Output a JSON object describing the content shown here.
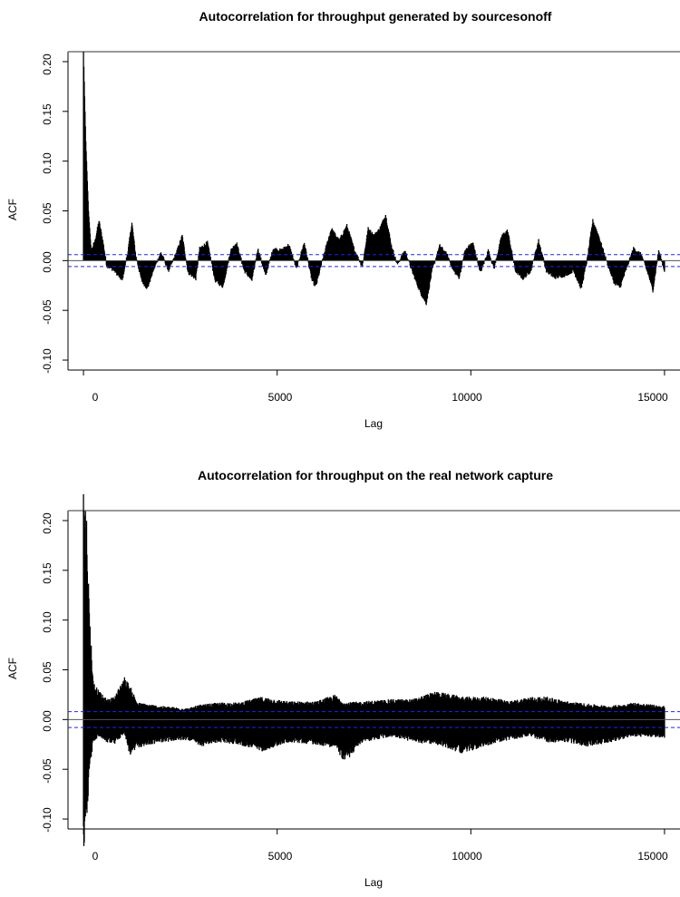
{
  "chart_data": [
    {
      "type": "bar",
      "title": "Autocorrelation for throughput generated by sourcesonoff",
      "xlabel": "Lag",
      "ylabel": "ACF",
      "xlim": [
        0,
        15000
      ],
      "ylim": [
        -0.11,
        0.21
      ],
      "xticks": [
        "0",
        "5000",
        "10000",
        "15000"
      ],
      "yticks": [
        "-0.10",
        "-0.05",
        "0.00",
        "0.05",
        "0.10",
        "0.15",
        "0.20"
      ],
      "confidence_band": 0.006,
      "max_lag": 15000,
      "grid": false,
      "envelope": [
        {
          "lag": 0,
          "acf": 0.21
        },
        {
          "lag": 60,
          "acf": 0.12
        },
        {
          "lag": 130,
          "acf": 0.05
        },
        {
          "lag": 200,
          "acf": 0.01
        },
        {
          "lag": 300,
          "acf": 0.02
        },
        {
          "lag": 400,
          "acf": 0.04
        },
        {
          "lag": 500,
          "acf": 0.02
        },
        {
          "lag": 600,
          "acf": -0.005
        },
        {
          "lag": 800,
          "acf": -0.01
        },
        {
          "lag": 1000,
          "acf": -0.02
        },
        {
          "lag": 1150,
          "acf": 0.01
        },
        {
          "lag": 1250,
          "acf": 0.038
        },
        {
          "lag": 1350,
          "acf": 0.005
        },
        {
          "lag": 1500,
          "acf": -0.02
        },
        {
          "lag": 1650,
          "acf": -0.028
        },
        {
          "lag": 1800,
          "acf": -0.01
        },
        {
          "lag": 2000,
          "acf": 0.008
        },
        {
          "lag": 2200,
          "acf": -0.01
        },
        {
          "lag": 2400,
          "acf": 0.008
        },
        {
          "lag": 2550,
          "acf": 0.025
        },
        {
          "lag": 2700,
          "acf": -0.012
        },
        {
          "lag": 2900,
          "acf": -0.018
        },
        {
          "lag": 3000,
          "acf": 0.012
        },
        {
          "lag": 3200,
          "acf": 0.018
        },
        {
          "lag": 3400,
          "acf": -0.02
        },
        {
          "lag": 3600,
          "acf": -0.026
        },
        {
          "lag": 3800,
          "acf": 0.01
        },
        {
          "lag": 3950,
          "acf": 0.018
        },
        {
          "lag": 4150,
          "acf": -0.01
        },
        {
          "lag": 4350,
          "acf": -0.02
        },
        {
          "lag": 4500,
          "acf": 0.012
        },
        {
          "lag": 4700,
          "acf": -0.015
        },
        {
          "lag": 4900,
          "acf": 0.012
        },
        {
          "lag": 5100,
          "acf": 0.01
        },
        {
          "lag": 5300,
          "acf": 0.016
        },
        {
          "lag": 5500,
          "acf": -0.008
        },
        {
          "lag": 5700,
          "acf": 0.018
        },
        {
          "lag": 5900,
          "acf": -0.02
        },
        {
          "lag": 6000,
          "acf": -0.026
        },
        {
          "lag": 6200,
          "acf": 0.005
        },
        {
          "lag": 6400,
          "acf": 0.032
        },
        {
          "lag": 6600,
          "acf": 0.02
        },
        {
          "lag": 6800,
          "acf": 0.035
        },
        {
          "lag": 7000,
          "acf": 0.01
        },
        {
          "lag": 7200,
          "acf": -0.006
        },
        {
          "lag": 7350,
          "acf": 0.032
        },
        {
          "lag": 7500,
          "acf": 0.025
        },
        {
          "lag": 7650,
          "acf": 0.032
        },
        {
          "lag": 7800,
          "acf": 0.046
        },
        {
          "lag": 7950,
          "acf": 0.015
        },
        {
          "lag": 8100,
          "acf": -0.004
        },
        {
          "lag": 8300,
          "acf": 0.01
        },
        {
          "lag": 8500,
          "acf": -0.012
        },
        {
          "lag": 8700,
          "acf": -0.032
        },
        {
          "lag": 8850,
          "acf": -0.043
        },
        {
          "lag": 9000,
          "acf": -0.01
        },
        {
          "lag": 9200,
          "acf": 0.015
        },
        {
          "lag": 9400,
          "acf": 0.005
        },
        {
          "lag": 9550,
          "acf": -0.01
        },
        {
          "lag": 9700,
          "acf": -0.017
        },
        {
          "lag": 9850,
          "acf": 0.01
        },
        {
          "lag": 10050,
          "acf": 0.018
        },
        {
          "lag": 10250,
          "acf": -0.012
        },
        {
          "lag": 10450,
          "acf": 0.01
        },
        {
          "lag": 10600,
          "acf": -0.008
        },
        {
          "lag": 10800,
          "acf": 0.025
        },
        {
          "lag": 10950,
          "acf": 0.03
        },
        {
          "lag": 11150,
          "acf": -0.01
        },
        {
          "lag": 11350,
          "acf": -0.018
        },
        {
          "lag": 11550,
          "acf": -0.01
        },
        {
          "lag": 11750,
          "acf": 0.02
        },
        {
          "lag": 11950,
          "acf": -0.01
        },
        {
          "lag": 12150,
          "acf": -0.017
        },
        {
          "lag": 12400,
          "acf": -0.015
        },
        {
          "lag": 12650,
          "acf": -0.01
        },
        {
          "lag": 12850,
          "acf": -0.028
        },
        {
          "lag": 13000,
          "acf": 0.0
        },
        {
          "lag": 13150,
          "acf": 0.04
        },
        {
          "lag": 13300,
          "acf": 0.025
        },
        {
          "lag": 13500,
          "acf": 0.0
        },
        {
          "lag": 13700,
          "acf": -0.022
        },
        {
          "lag": 13850,
          "acf": -0.027
        },
        {
          "lag": 14000,
          "acf": -0.01
        },
        {
          "lag": 14200,
          "acf": 0.012
        },
        {
          "lag": 14400,
          "acf": 0.006
        },
        {
          "lag": 14600,
          "acf": -0.016
        },
        {
          "lag": 14700,
          "acf": -0.03
        },
        {
          "lag": 14850,
          "acf": 0.01
        },
        {
          "lag": 15000,
          "acf": -0.01
        }
      ]
    },
    {
      "type": "bar",
      "title": "Autocorrelation for throughput on the real network capture",
      "xlabel": "Lag",
      "ylabel": "ACF",
      "xlim": [
        0,
        15000
      ],
      "ylim": [
        -0.11,
        0.21
      ],
      "xticks": [
        "0",
        "5000",
        "10000",
        "15000"
      ],
      "yticks": [
        "-0.10",
        "-0.05",
        "0.00",
        "0.05",
        "0.10",
        "0.15",
        "0.20"
      ],
      "confidence_band": 0.008,
      "max_lag": 15000,
      "grid": false,
      "envelope": [
        {
          "lag": 0,
          "upper": 0.21,
          "lower": -0.115
        },
        {
          "lag": 80,
          "upper": 0.18,
          "lower": -0.09
        },
        {
          "lag": 150,
          "upper": 0.1,
          "lower": -0.05
        },
        {
          "lag": 250,
          "upper": 0.035,
          "lower": -0.02
        },
        {
          "lag": 400,
          "upper": 0.025,
          "lower": -0.015
        },
        {
          "lag": 600,
          "upper": 0.018,
          "lower": -0.02
        },
        {
          "lag": 800,
          "upper": 0.02,
          "lower": -0.022
        },
        {
          "lag": 1050,
          "upper": 0.038,
          "lower": -0.012
        },
        {
          "lag": 1200,
          "upper": 0.03,
          "lower": -0.032
        },
        {
          "lag": 1400,
          "upper": 0.015,
          "lower": -0.025
        },
        {
          "lag": 2000,
          "upper": 0.012,
          "lower": -0.02
        },
        {
          "lag": 2700,
          "upper": 0.01,
          "lower": -0.018
        },
        {
          "lag": 3000,
          "upper": 0.013,
          "lower": -0.024
        },
        {
          "lag": 3500,
          "upper": 0.015,
          "lower": -0.02
        },
        {
          "lag": 4000,
          "upper": 0.015,
          "lower": -0.022
        },
        {
          "lag": 4600,
          "upper": 0.02,
          "lower": -0.028
        },
        {
          "lag": 5300,
          "upper": 0.016,
          "lower": -0.02
        },
        {
          "lag": 6000,
          "upper": 0.016,
          "lower": -0.022
        },
        {
          "lag": 6500,
          "upper": 0.022,
          "lower": -0.025
        },
        {
          "lag": 6750,
          "upper": 0.015,
          "lower": -0.038
        },
        {
          "lag": 7200,
          "upper": 0.016,
          "lower": -0.02
        },
        {
          "lag": 8000,
          "upper": 0.018,
          "lower": -0.015
        },
        {
          "lag": 8500,
          "upper": 0.018,
          "lower": -0.02
        },
        {
          "lag": 9100,
          "upper": 0.025,
          "lower": -0.022
        },
        {
          "lag": 9800,
          "upper": 0.02,
          "lower": -0.03
        },
        {
          "lag": 10500,
          "upper": 0.02,
          "lower": -0.022
        },
        {
          "lag": 11000,
          "upper": 0.016,
          "lower": -0.018
        },
        {
          "lag": 11500,
          "upper": 0.02,
          "lower": -0.015
        },
        {
          "lag": 12000,
          "upper": 0.02,
          "lower": -0.02
        },
        {
          "lag": 12500,
          "upper": 0.016,
          "lower": -0.02
        },
        {
          "lag": 13000,
          "upper": 0.014,
          "lower": -0.024
        },
        {
          "lag": 13600,
          "upper": 0.012,
          "lower": -0.02
        },
        {
          "lag": 14200,
          "upper": 0.015,
          "lower": -0.015
        },
        {
          "lag": 15000,
          "upper": 0.012,
          "lower": -0.016
        }
      ]
    }
  ],
  "colors": {
    "bars": "#000000",
    "confidence_line": "#2222ee",
    "axis": "#000000",
    "zero_line": "#555555",
    "background": "#ffffff"
  }
}
